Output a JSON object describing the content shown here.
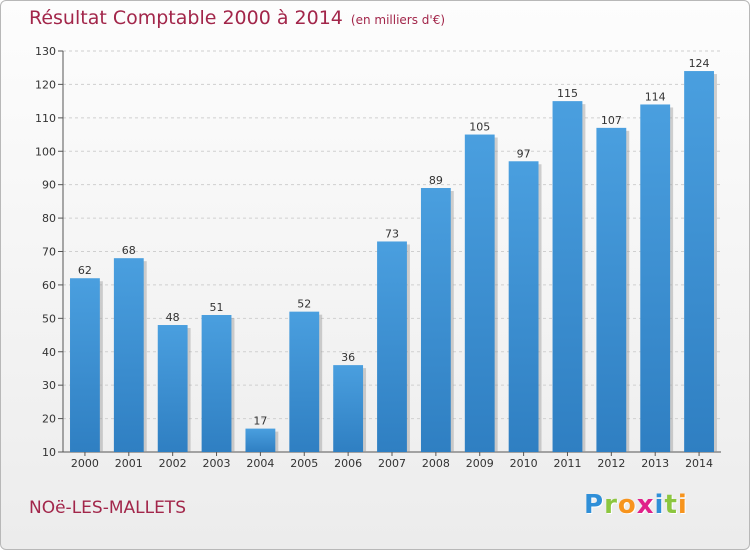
{
  "title": "Résultat Comptable 2000 à 2014",
  "subtitle": "(en milliers d'€)",
  "town": "NOë-LES-MALLETS",
  "logo": [
    "P",
    "r",
    "o",
    "x",
    "i",
    "t",
    "i"
  ],
  "logo_colors": [
    "#2f8fd8",
    "#8cc63f",
    "#f7941d",
    "#e0218a",
    "#2f8fd8",
    "#8cc63f",
    "#f7941d"
  ],
  "colors": {
    "bar": "#4a9fdf",
    "bar_dark": "#2f7fc2",
    "title": "#a2264a",
    "grid": "#cfcfcf"
  },
  "chart_data": {
    "type": "bar",
    "categories": [
      "2000",
      "2001",
      "2002",
      "2003",
      "2004",
      "2005",
      "2006",
      "2007",
      "2008",
      "2009",
      "2010",
      "2011",
      "2012",
      "2013",
      "2014"
    ],
    "values": [
      62,
      68,
      48,
      51,
      17,
      52,
      36,
      73,
      89,
      105,
      97,
      115,
      107,
      114,
      124
    ],
    "ylim": [
      10,
      130
    ],
    "yticks": [
      10,
      20,
      30,
      40,
      50,
      60,
      70,
      80,
      90,
      100,
      110,
      120,
      130
    ],
    "grid": true
  }
}
